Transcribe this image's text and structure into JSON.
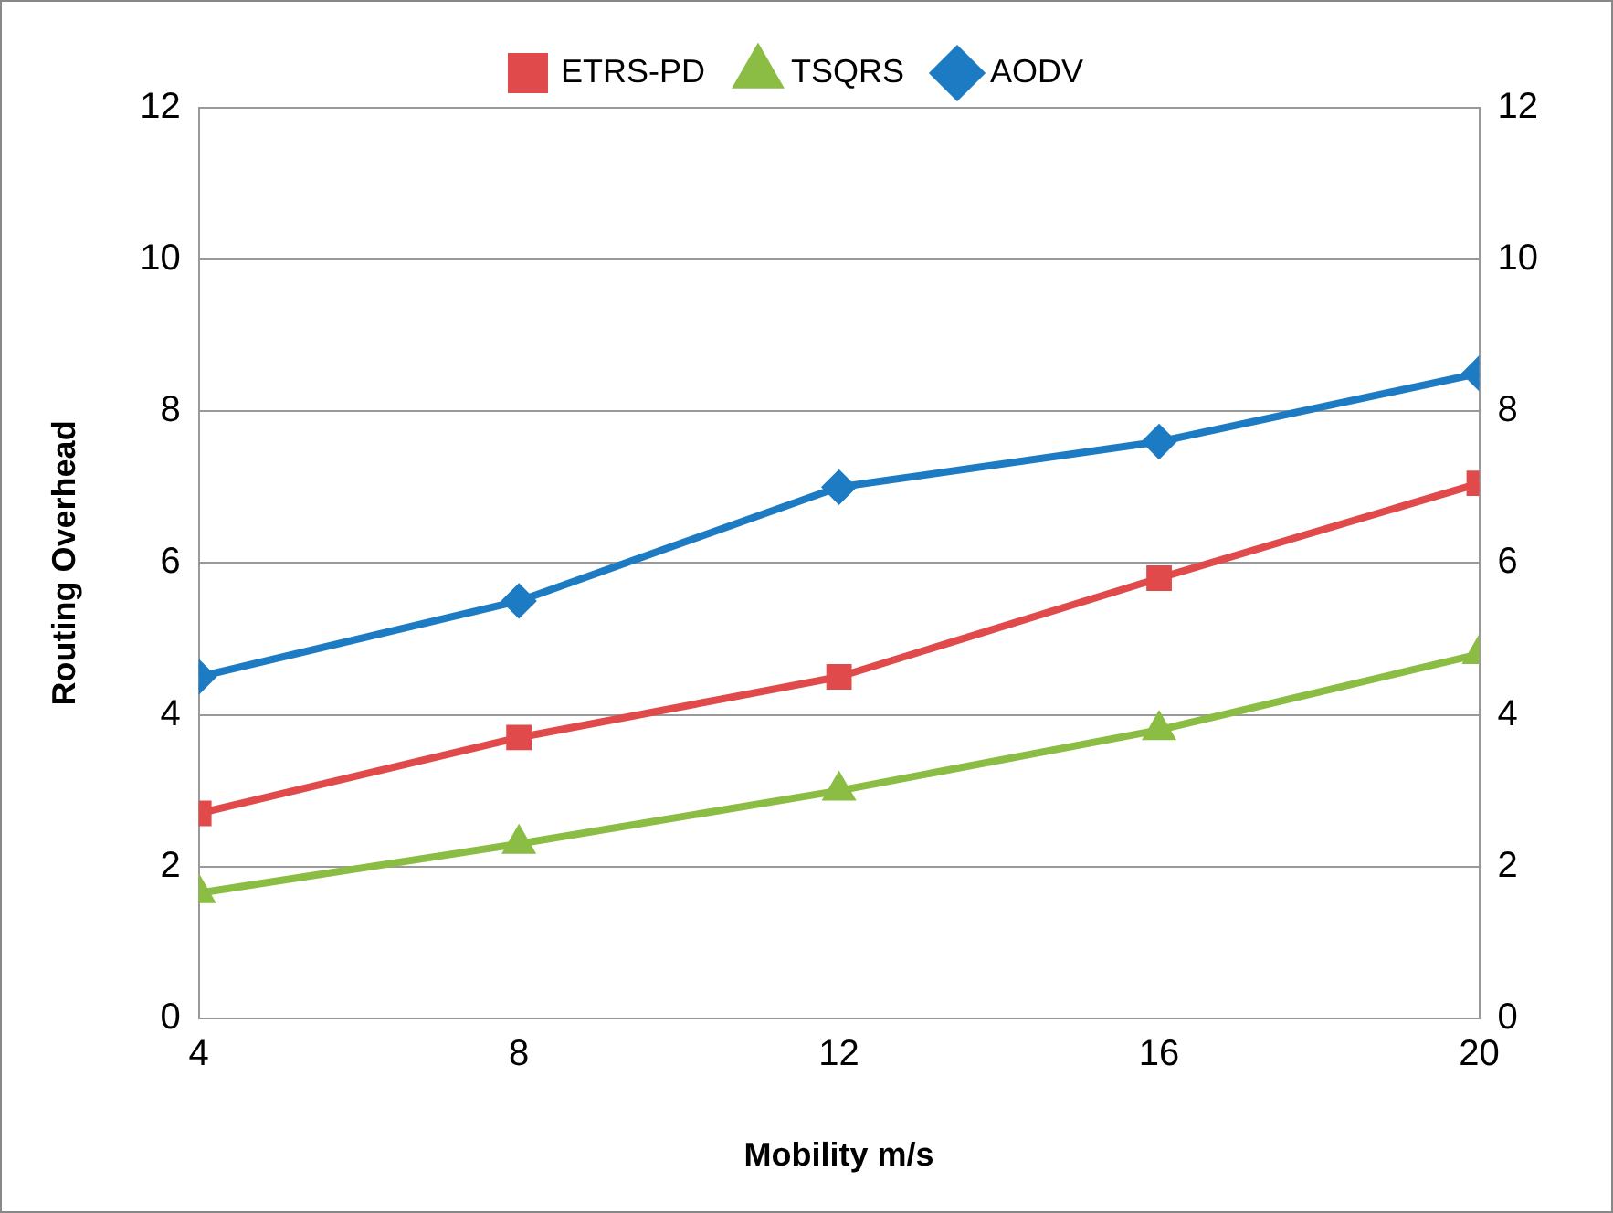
{
  "chart_data": {
    "type": "line",
    "xlabel": "Mobility m/s",
    "ylabel": "Routing Overhead",
    "x": [
      4,
      8,
      12,
      16,
      20
    ],
    "xlim": [
      4,
      20
    ],
    "xticks": [
      4,
      8,
      12,
      16,
      20
    ],
    "ylim": [
      0,
      12
    ],
    "yticks": [
      0,
      2,
      4,
      6,
      8,
      10,
      12
    ],
    "y2lim": [
      0,
      12
    ],
    "y2ticks": [
      0,
      2,
      4,
      6,
      8,
      10,
      12
    ],
    "grid": "y",
    "legend": "top",
    "line_style": "solid",
    "series": [
      {
        "name": "ETRS-PD",
        "color": "#e04a4a",
        "marker": "square",
        "values": [
          2.7,
          3.7,
          4.5,
          5.8,
          7.05
        ]
      },
      {
        "name": "TSQRS",
        "color": "#8bbd45",
        "marker": "triangle",
        "values": [
          1.65,
          2.3,
          3.0,
          3.8,
          4.8
        ]
      },
      {
        "name": "AODV",
        "color": "#1c7bc3",
        "marker": "diamond",
        "values": [
          4.5,
          5.5,
          7.0,
          7.6,
          8.5
        ]
      }
    ]
  }
}
